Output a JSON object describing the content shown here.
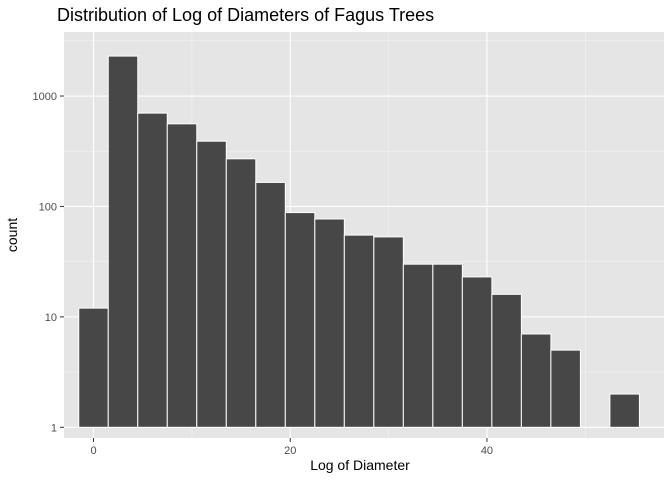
{
  "chart_data": {
    "type": "bar",
    "title": "Distribution of Log of Diameters of Fagus Trees",
    "xlabel": "Log of Diameter",
    "ylabel": "count",
    "yscale": "log10",
    "xlim": [
      -3.0,
      58.0
    ],
    "ylim": [
      0.8,
      3800
    ],
    "x_ticks": [
      0,
      20,
      40
    ],
    "x_tick_labels": [
      "0",
      "20",
      "40"
    ],
    "y_ticks": [
      1,
      10,
      100,
      1000
    ],
    "y_tick_labels": [
      "1",
      "10",
      "100",
      "1000"
    ],
    "grid": true,
    "bin_width": 3,
    "bins": [
      {
        "x0": -1.5,
        "x1": 1.5,
        "count": 12
      },
      {
        "x0": 1.5,
        "x1": 4.5,
        "count": 2300
      },
      {
        "x0": 4.5,
        "x1": 7.5,
        "count": 700
      },
      {
        "x0": 7.5,
        "x1": 10.5,
        "count": 560
      },
      {
        "x0": 10.5,
        "x1": 13.5,
        "count": 390
      },
      {
        "x0": 13.5,
        "x1": 16.5,
        "count": 270
      },
      {
        "x0": 16.5,
        "x1": 19.5,
        "count": 165
      },
      {
        "x0": 19.5,
        "x1": 22.5,
        "count": 88
      },
      {
        "x0": 22.5,
        "x1": 25.5,
        "count": 77
      },
      {
        "x0": 25.5,
        "x1": 28.5,
        "count": 55
      },
      {
        "x0": 28.5,
        "x1": 31.5,
        "count": 53
      },
      {
        "x0": 31.5,
        "x1": 34.5,
        "count": 30
      },
      {
        "x0": 34.5,
        "x1": 37.5,
        "count": 30
      },
      {
        "x0": 37.5,
        "x1": 40.5,
        "count": 23
      },
      {
        "x0": 40.5,
        "x1": 43.5,
        "count": 16
      },
      {
        "x0": 43.5,
        "x1": 46.5,
        "count": 7
      },
      {
        "x0": 46.5,
        "x1": 49.5,
        "count": 5
      },
      {
        "x0": 52.5,
        "x1": 55.5,
        "count": 2
      }
    ],
    "colors": {
      "panel": "#e5e5e5",
      "grid_major": "#ffffff",
      "grid_minor": "#f2f2f2",
      "bar_fill": "#474747",
      "bar_outline": "#ffffff"
    }
  }
}
